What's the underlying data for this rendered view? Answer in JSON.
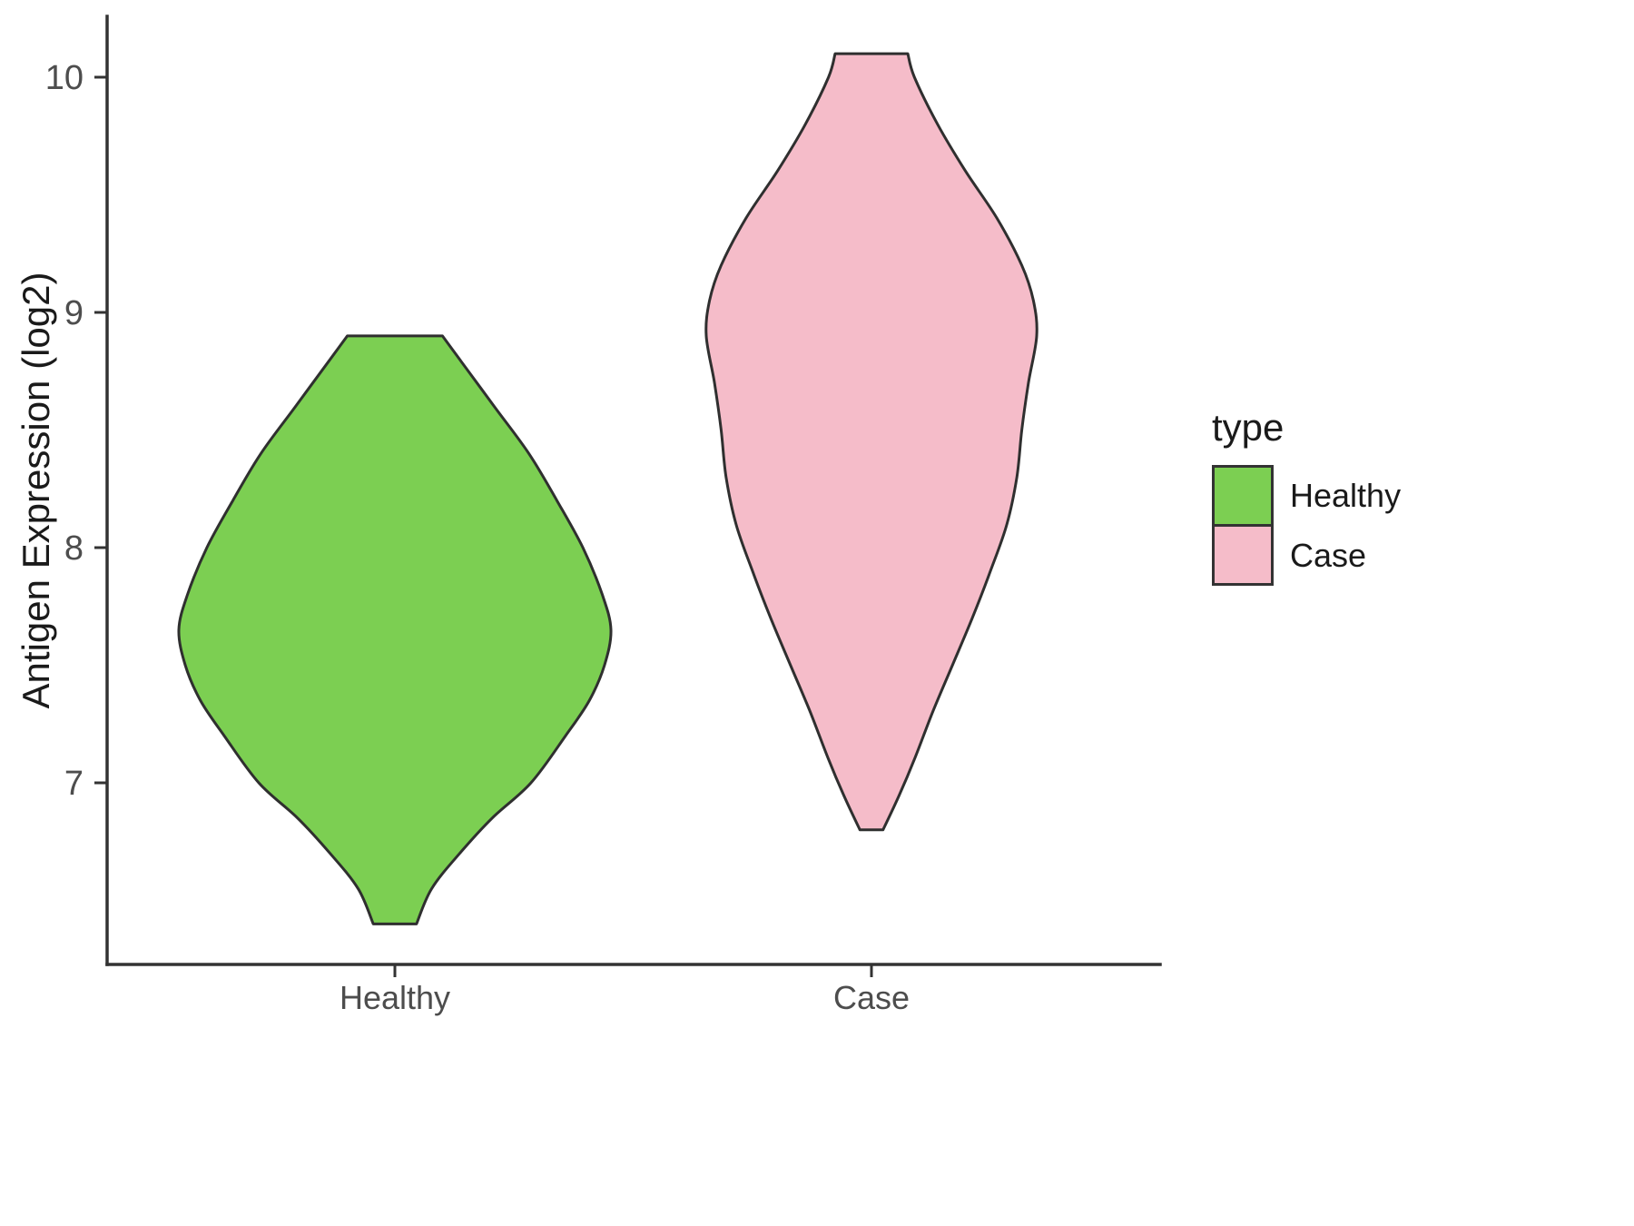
{
  "page": {
    "background": "#ffffff",
    "axis_color": "#333333",
    "tick_label_color": "#4d4d4d"
  },
  "chart_data": {
    "type": "violin",
    "title": "",
    "xlabel": "",
    "ylabel": "Antigen Expression (log2)",
    "categories": [
      "Healthy",
      "Case"
    ],
    "yticks": [
      7,
      8,
      9,
      10
    ],
    "ylim": [
      6.2,
      10.26
    ],
    "grid": false,
    "legend": {
      "title": "type",
      "position": "right",
      "entries": [
        {
          "label": "Healthy",
          "color": "#7CCF52"
        },
        {
          "label": "Case",
          "color": "#F5BCC9"
        }
      ]
    },
    "series": [
      {
        "name": "Healthy",
        "fill": "#7CCF52",
        "stroke": "#2f2f2f",
        "value_range": [
          6.4,
          8.9
        ],
        "density_profile": [
          [
            8.9,
            0.22
          ],
          [
            8.8,
            0.3
          ],
          [
            8.6,
            0.46
          ],
          [
            8.4,
            0.62
          ],
          [
            8.2,
            0.75
          ],
          [
            8.0,
            0.87
          ],
          [
            7.8,
            0.96
          ],
          [
            7.65,
            1.0
          ],
          [
            7.5,
            0.97
          ],
          [
            7.35,
            0.9
          ],
          [
            7.2,
            0.79
          ],
          [
            7.0,
            0.63
          ],
          [
            6.85,
            0.45
          ],
          [
            6.7,
            0.3
          ],
          [
            6.55,
            0.17
          ],
          [
            6.4,
            0.1
          ]
        ]
      },
      {
        "name": "Case",
        "fill": "#F5BCC9",
        "stroke": "#2f2f2f",
        "value_range": [
          6.8,
          10.1
        ],
        "density_profile": [
          [
            10.1,
            0.22
          ],
          [
            10.0,
            0.26
          ],
          [
            9.8,
            0.4
          ],
          [
            9.6,
            0.57
          ],
          [
            9.4,
            0.76
          ],
          [
            9.2,
            0.91
          ],
          [
            9.05,
            0.98
          ],
          [
            8.9,
            1.0
          ],
          [
            8.7,
            0.95
          ],
          [
            8.5,
            0.91
          ],
          [
            8.3,
            0.88
          ],
          [
            8.1,
            0.82
          ],
          [
            7.9,
            0.72
          ],
          [
            7.7,
            0.61
          ],
          [
            7.5,
            0.49
          ],
          [
            7.3,
            0.37
          ],
          [
            7.1,
            0.26
          ],
          [
            6.95,
            0.17
          ],
          [
            6.8,
            0.07
          ]
        ]
      }
    ]
  }
}
